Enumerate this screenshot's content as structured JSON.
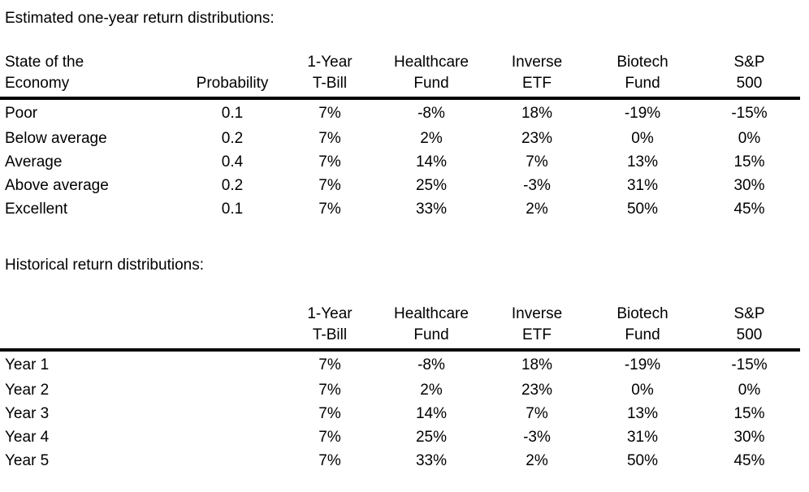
{
  "page": {
    "background_color": "#ffffff",
    "text_color": "#000000"
  },
  "estimated": {
    "title": "Estimated one-year return distributions:",
    "columns": [
      {
        "line1": "State of the",
        "line2": "Economy"
      },
      {
        "line1": "",
        "line2": "Probability"
      },
      {
        "line1": "1-Year",
        "line2": "T-Bill"
      },
      {
        "line1": "Healthcare",
        "line2": "Fund"
      },
      {
        "line1": "Inverse",
        "line2": "ETF"
      },
      {
        "line1": "Biotech",
        "line2": "Fund"
      },
      {
        "line1": "S&P",
        "line2": "500"
      }
    ],
    "rows": [
      {
        "label": "Poor",
        "values": [
          "0.1",
          "7%",
          "-8%",
          "18%",
          "-19%",
          "-15%"
        ]
      },
      {
        "label": "Below average",
        "values": [
          "0.2",
          "7%",
          "2%",
          "23%",
          "0%",
          "0%"
        ]
      },
      {
        "label": "Average",
        "values": [
          "0.4",
          "7%",
          "14%",
          "7%",
          "13%",
          "15%"
        ]
      },
      {
        "label": "Above average",
        "values": [
          "0.2",
          "7%",
          "25%",
          "-3%",
          "31%",
          "30%"
        ]
      },
      {
        "label": "Excellent",
        "values": [
          "0.1",
          "7%",
          "33%",
          "2%",
          "50%",
          "45%"
        ]
      }
    ]
  },
  "historical": {
    "title": "Historical return distributions:",
    "columns": [
      {
        "line1": "",
        "line2": ""
      },
      {
        "line1": "",
        "line2": ""
      },
      {
        "line1": "1-Year",
        "line2": "T-Bill"
      },
      {
        "line1": "Healthcare",
        "line2": "Fund"
      },
      {
        "line1": "Inverse",
        "line2": "ETF"
      },
      {
        "line1": "Biotech",
        "line2": "Fund"
      },
      {
        "line1": "S&P",
        "line2": "500"
      }
    ],
    "rows": [
      {
        "label": "Year 1",
        "values": [
          "",
          "7%",
          "-8%",
          "18%",
          "-19%",
          "-15%"
        ]
      },
      {
        "label": "Year 2",
        "values": [
          "",
          "7%",
          "2%",
          "23%",
          "0%",
          "0%"
        ]
      },
      {
        "label": "Year 3",
        "values": [
          "",
          "7%",
          "14%",
          "7%",
          "13%",
          "15%"
        ]
      },
      {
        "label": "Year 4",
        "values": [
          "",
          "7%",
          "25%",
          "-3%",
          "31%",
          "30%"
        ]
      },
      {
        "label": "Year 5",
        "values": [
          "",
          "7%",
          "33%",
          "2%",
          "50%",
          "45%"
        ]
      }
    ]
  }
}
